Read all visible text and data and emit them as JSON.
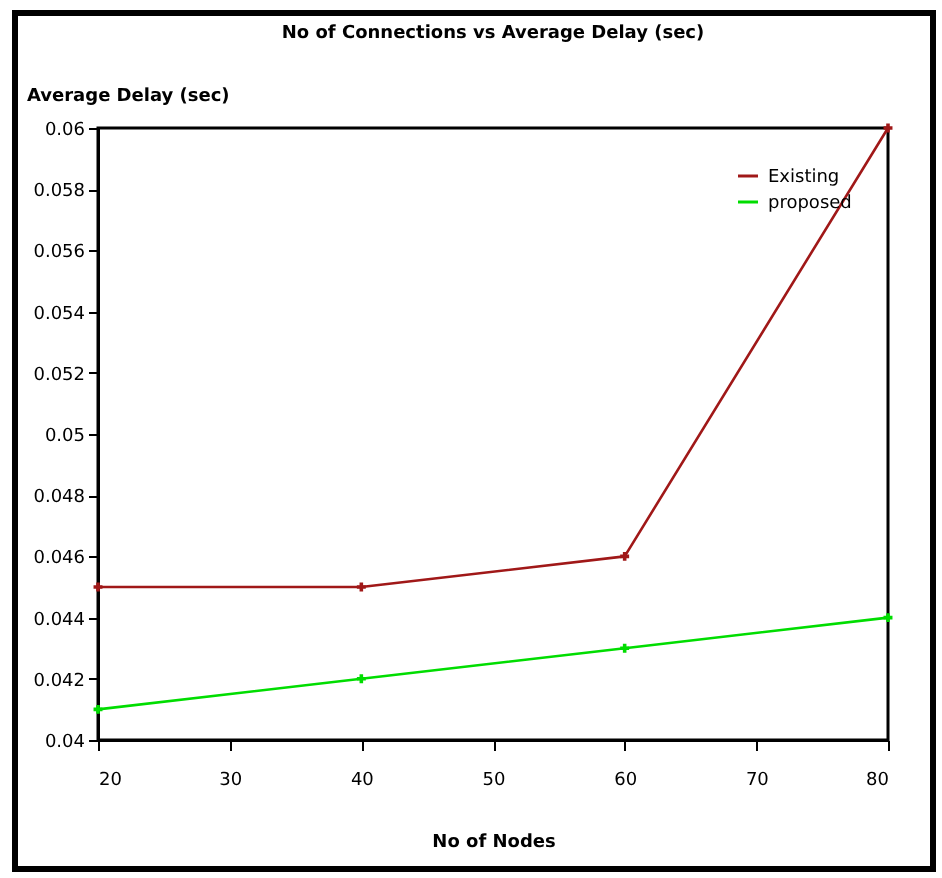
{
  "chart_data": {
    "type": "line",
    "title": "No of Connections vs Average Delay (sec)",
    "xlabel": "No of Nodes",
    "ylabel": "Average Delay (sec)",
    "x": [
      20,
      40,
      60,
      80
    ],
    "series": [
      {
        "name": "Existing",
        "color": "#a01818",
        "values": [
          0.045,
          0.045,
          0.046,
          0.06
        ]
      },
      {
        "name": "proposed",
        "color": "#00dd00",
        "values": [
          0.041,
          0.042,
          0.043,
          0.044
        ]
      }
    ],
    "xlim": [
      20,
      80
    ],
    "xticks": [
      20,
      30,
      40,
      50,
      60,
      70,
      80
    ],
    "ylim": [
      0.04,
      0.06
    ],
    "yticks": [
      0.04,
      0.042,
      0.044,
      0.046,
      0.048,
      0.05,
      0.052,
      0.054,
      0.056,
      0.058,
      0.06
    ],
    "legend": "top right",
    "marker": "cross",
    "line_style": "solid",
    "grid": false
  }
}
